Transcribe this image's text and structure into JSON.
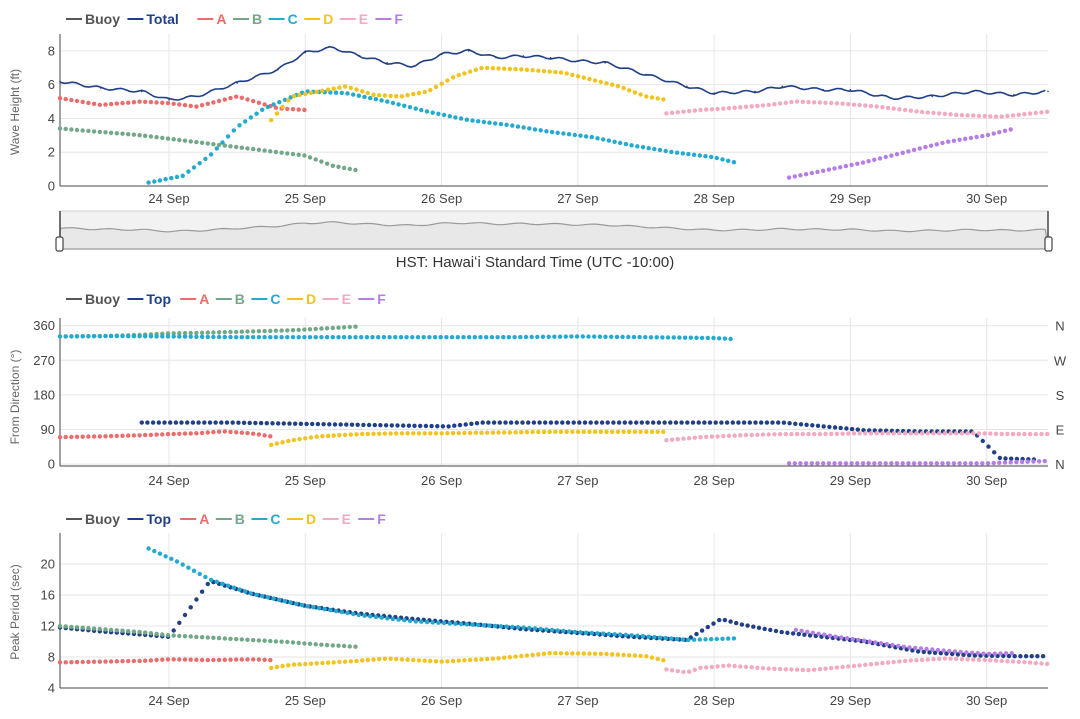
{
  "legends": [
    [
      "Buoy",
      "Total",
      "A",
      "B",
      "C",
      "D",
      "E",
      "F"
    ],
    [
      "Buoy",
      "Top",
      "A",
      "B",
      "C",
      "D",
      "E",
      "F"
    ],
    [
      "Buoy",
      "Top",
      "A",
      "B",
      "C",
      "D",
      "E",
      "F"
    ]
  ],
  "colors": {
    "Buoy": "#555555",
    "Total": "#1f3f86",
    "Top": "#1f3f86",
    "A": "#ec6b6b",
    "B": "#72a887",
    "C": "#22aacf",
    "D": "#f2c31d",
    "E": "#f2a9c3",
    "F": "#b57ee6"
  },
  "timezone_label": "HST: Hawaiʻi Standard Time (UTC -10:00)",
  "compass_labels": [
    "N",
    "W",
    "S",
    "E",
    "N"
  ],
  "chart_data": [
    {
      "type": "scatter",
      "title": "",
      "ylabel": "Wave Height (ft)",
      "ylim": [
        0,
        9
      ],
      "yticks": [
        0,
        2,
        4,
        6,
        8
      ],
      "xlim": [
        23.2,
        30.45
      ],
      "xticks": [
        24,
        25,
        26,
        27,
        28,
        29,
        30
      ],
      "xtick_labels": [
        "24 Sep",
        "25 Sep",
        "26 Sep",
        "27 Sep",
        "28 Sep",
        "29 Sep",
        "30 Sep"
      ],
      "x_unit": "day of September",
      "series": [
        {
          "name": "Total",
          "style": "line",
          "x": [
            23.2,
            23.5,
            23.8,
            24.0,
            24.2,
            24.5,
            24.8,
            25.0,
            25.2,
            25.4,
            25.6,
            25.8,
            26.0,
            26.2,
            26.4,
            26.6,
            26.8,
            27.0,
            27.2,
            27.5,
            27.8,
            28.0,
            28.3,
            28.5,
            28.8,
            29.0,
            29.3,
            29.6,
            29.9,
            30.2,
            30.45
          ],
          "y": [
            6.2,
            5.8,
            5.6,
            5.1,
            5.3,
            6.1,
            6.9,
            7.9,
            8.2,
            7.7,
            7.3,
            7.1,
            7.8,
            8.0,
            7.6,
            7.7,
            7.6,
            7.4,
            7.3,
            6.6,
            5.9,
            5.5,
            5.6,
            5.9,
            5.7,
            5.7,
            5.2,
            5.3,
            5.6,
            5.4,
            5.6
          ]
        },
        {
          "name": "A",
          "style": "dots",
          "x": [
            23.2,
            23.5,
            23.8,
            24.0,
            24.2,
            24.5,
            24.8,
            25.0
          ],
          "y": [
            5.2,
            4.8,
            5.0,
            4.9,
            4.7,
            5.3,
            4.6,
            4.5
          ]
        },
        {
          "name": "B",
          "style": "dots",
          "x": [
            23.2,
            23.5,
            23.8,
            24.0,
            24.2,
            24.5,
            24.8,
            25.0,
            25.2,
            25.4
          ],
          "y": [
            3.4,
            3.2,
            3.0,
            2.8,
            2.6,
            2.3,
            2.0,
            1.8,
            1.2,
            0.9
          ]
        },
        {
          "name": "C",
          "style": "dots",
          "x": [
            23.85,
            24.1,
            24.3,
            24.5,
            24.7,
            25.0,
            25.3,
            25.6,
            25.9,
            26.2,
            26.5,
            26.8,
            27.1,
            27.4,
            27.7,
            28.0,
            28.15
          ],
          "y": [
            0.2,
            0.6,
            1.8,
            3.5,
            4.6,
            5.6,
            5.5,
            5.0,
            4.4,
            3.9,
            3.6,
            3.2,
            2.9,
            2.4,
            2.0,
            1.7,
            1.4
          ]
        },
        {
          "name": "D",
          "style": "dots",
          "x": [
            24.75,
            24.9,
            25.1,
            25.3,
            25.5,
            25.7,
            25.9,
            26.1,
            26.3,
            26.6,
            26.9,
            27.1,
            27.3,
            27.5,
            27.65
          ],
          "y": [
            3.9,
            5.3,
            5.6,
            5.9,
            5.4,
            5.3,
            5.6,
            6.5,
            7.0,
            6.9,
            6.7,
            6.3,
            5.9,
            5.3,
            5.1
          ]
        },
        {
          "name": "E",
          "style": "dots",
          "x": [
            27.65,
            27.9,
            28.1,
            28.4,
            28.6,
            28.9,
            29.2,
            29.5,
            29.8,
            30.1,
            30.45
          ],
          "y": [
            4.3,
            4.5,
            4.6,
            4.8,
            5.0,
            4.9,
            4.7,
            4.4,
            4.2,
            4.1,
            4.4
          ]
        },
        {
          "name": "F",
          "style": "dots",
          "x": [
            28.55,
            28.8,
            29.1,
            29.4,
            29.7,
            30.0,
            30.2
          ],
          "y": [
            0.5,
            0.9,
            1.4,
            2.0,
            2.6,
            3.0,
            3.4
          ]
        }
      ]
    },
    {
      "type": "scatter",
      "title": "",
      "ylabel": "From Direction (°)",
      "ylim": [
        -5,
        380
      ],
      "yticks": [
        0,
        90,
        180,
        270,
        360
      ],
      "xlim": [
        23.2,
        30.45
      ],
      "xticks": [
        24,
        25,
        26,
        27,
        28,
        29,
        30
      ],
      "xtick_labels": [
        "24 Sep",
        "25 Sep",
        "26 Sep",
        "27 Sep",
        "28 Sep",
        "29 Sep",
        "30 Sep"
      ],
      "series": [
        {
          "name": "Top",
          "style": "dots",
          "x": [
            23.8,
            24.0,
            24.3,
            24.45,
            26.05,
            26.3,
            26.6,
            27.0,
            27.5,
            28.0,
            28.5,
            28.9,
            29.1,
            29.5,
            29.9,
            30.1,
            30.35
          ],
          "y": [
            108,
            108,
            108,
            108,
            98,
            108,
            108,
            108,
            108,
            108,
            108,
            95,
            88,
            85,
            85,
            15,
            12
          ]
        },
        {
          "name": "A",
          "style": "dots",
          "x": [
            23.2,
            23.5,
            23.8,
            24.0,
            24.2,
            24.4,
            24.6,
            24.75
          ],
          "y": [
            70,
            72,
            75,
            78,
            80,
            85,
            80,
            72
          ]
        },
        {
          "name": "B",
          "style": "dots",
          "x": [
            23.2,
            23.5,
            23.8,
            24.0,
            24.3,
            24.6,
            24.9,
            25.1,
            25.4
          ],
          "y": [
            332,
            333,
            336,
            340,
            342,
            345,
            348,
            352,
            358
          ]
        },
        {
          "name": "C",
          "style": "dots",
          "x": [
            23.2,
            23.6,
            24.0,
            24.5,
            25.0,
            25.5,
            26.0,
            26.5,
            27.0,
            27.5,
            28.0,
            28.15
          ],
          "y": [
            332,
            333,
            332,
            330,
            330,
            330,
            330,
            330,
            332,
            330,
            328,
            325
          ]
        },
        {
          "name": "D",
          "style": "dots",
          "x": [
            24.75,
            24.9,
            25.1,
            25.4,
            25.7,
            26.0,
            26.4,
            26.8,
            27.2,
            27.65
          ],
          "y": [
            50,
            62,
            72,
            78,
            80,
            80,
            82,
            84,
            84,
            84
          ]
        },
        {
          "name": "E",
          "style": "dots",
          "x": [
            27.65,
            27.9,
            28.2,
            28.5,
            28.8,
            29.1,
            29.5,
            29.9,
            30.2,
            30.45
          ],
          "y": [
            62,
            70,
            75,
            78,
            78,
            80,
            80,
            80,
            78,
            78
          ]
        },
        {
          "name": "F",
          "style": "dots",
          "x": [
            28.55,
            28.9,
            29.3,
            29.7,
            30.0,
            30.2,
            30.45
          ],
          "y": [
            2,
            2,
            2,
            2,
            2,
            5,
            8
          ]
        }
      ]
    },
    {
      "type": "scatter",
      "title": "",
      "ylabel": "Peak Period (sec)",
      "ylim": [
        4,
        24
      ],
      "yticks": [
        4,
        8,
        12,
        16,
        20
      ],
      "xlim": [
        23.2,
        30.45
      ],
      "xticks": [
        24,
        25,
        26,
        27,
        28,
        29,
        30
      ],
      "xtick_labels": [
        "24 Sep",
        "25 Sep",
        "26 Sep",
        "27 Sep",
        "28 Sep",
        "29 Sep",
        "30 Sep"
      ],
      "series": [
        {
          "name": "Top",
          "style": "dots",
          "x": [
            23.2,
            23.5,
            23.8,
            24.0,
            24.3,
            24.6,
            25.0,
            25.4,
            25.8,
            26.2,
            26.6,
            27.0,
            27.4,
            27.8,
            28.05,
            28.2,
            28.5,
            28.8,
            29.1,
            29.5,
            29.9,
            30.2,
            30.45
          ],
          "y": [
            11.8,
            11.3,
            10.9,
            10.6,
            17.8,
            16.2,
            14.6,
            13.6,
            12.9,
            12.3,
            11.6,
            11.1,
            10.6,
            10.2,
            12.9,
            12.2,
            11.2,
            10.6,
            10.0,
            8.7,
            8.2,
            8.1,
            8.1
          ]
        },
        {
          "name": "A",
          "style": "dots",
          "x": [
            23.2,
            23.5,
            23.8,
            24.0,
            24.3,
            24.6,
            24.75
          ],
          "y": [
            7.3,
            7.4,
            7.5,
            7.7,
            7.6,
            7.7,
            7.6
          ]
        },
        {
          "name": "B",
          "style": "dots",
          "x": [
            23.2,
            23.5,
            23.8,
            24.0,
            24.3,
            24.6,
            24.9,
            25.1,
            25.4
          ],
          "y": [
            12.0,
            11.6,
            11.2,
            10.8,
            10.5,
            10.2,
            9.9,
            9.6,
            9.3
          ]
        },
        {
          "name": "C",
          "style": "dots",
          "x": [
            23.85,
            24.05,
            24.3,
            24.6,
            25.0,
            25.4,
            25.8,
            26.2,
            26.6,
            27.0,
            27.4,
            27.8,
            28.15
          ],
          "y": [
            22.0,
            20.4,
            18.0,
            16.2,
            14.6,
            13.4,
            12.6,
            12.2,
            11.8,
            11.2,
            10.8,
            10.2,
            10.4
          ]
        },
        {
          "name": "D",
          "style": "dots",
          "x": [
            24.75,
            24.9,
            25.1,
            25.3,
            25.6,
            26.0,
            26.4,
            26.8,
            27.2,
            27.5,
            27.65
          ],
          "y": [
            6.6,
            7.0,
            7.2,
            7.4,
            7.8,
            7.4,
            7.8,
            8.5,
            8.4,
            8.1,
            7.5
          ]
        },
        {
          "name": "E",
          "style": "dots",
          "x": [
            27.65,
            27.8,
            27.9,
            28.1,
            28.4,
            28.7,
            29.0,
            29.4,
            29.7,
            30.0,
            30.3,
            30.45
          ],
          "y": [
            6.4,
            6.0,
            6.6,
            6.9,
            6.5,
            6.3,
            6.8,
            7.5,
            7.8,
            7.6,
            7.3,
            7.1
          ]
        },
        {
          "name": "F",
          "style": "dots",
          "x": [
            28.6,
            28.9,
            29.1,
            29.4,
            29.7,
            30.0,
            30.2
          ],
          "y": [
            11.5,
            10.6,
            10.1,
            9.3,
            8.8,
            8.4,
            8.5
          ]
        }
      ]
    }
  ]
}
